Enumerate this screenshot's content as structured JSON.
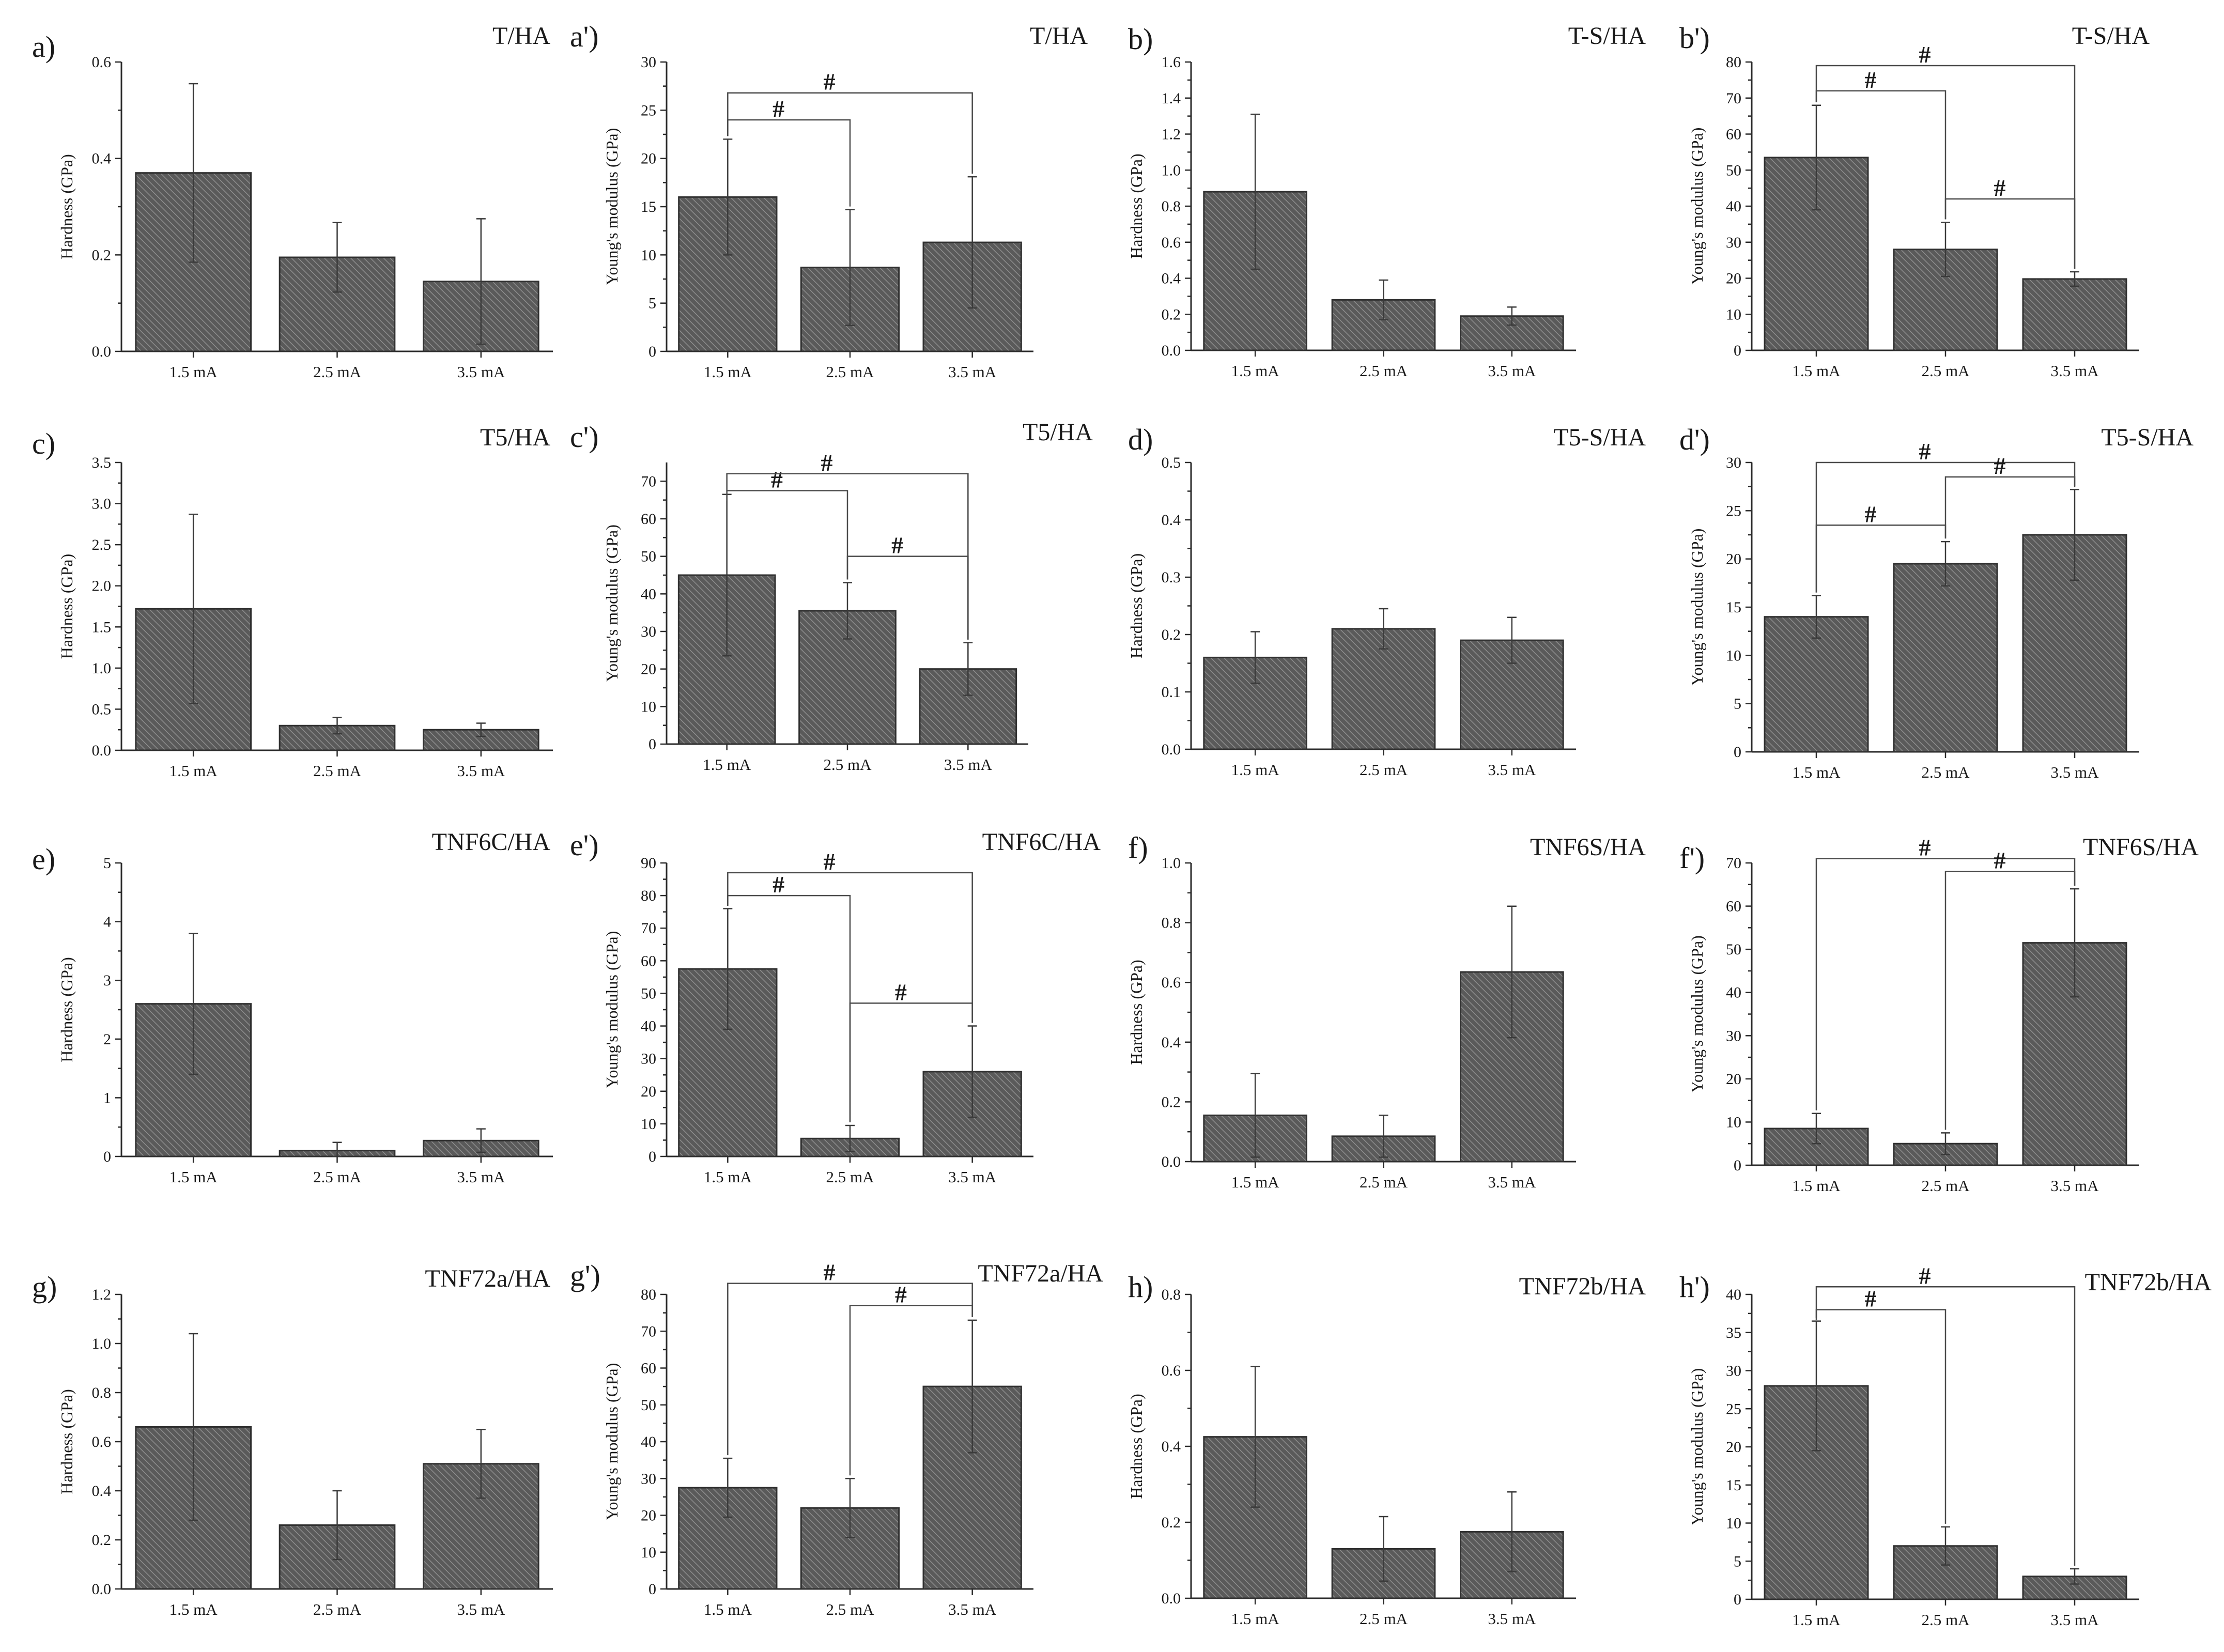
{
  "chart_data": [
    {
      "panel": "a)",
      "title": "T/HA",
      "type": "bar",
      "ylabel": "Hardness (GPa)",
      "categories": [
        "1.5 mA",
        "2.5 mA",
        "3.5 mA"
      ],
      "values": [
        0.37,
        0.195,
        0.145
      ],
      "errors": [
        0.185,
        0.072,
        0.13
      ],
      "yticks": [
        "0.0",
        "0.2",
        "0.4",
        "0.6"
      ],
      "ylim": [
        0,
        0.6
      ],
      "sig": []
    },
    {
      "panel": "a')",
      "title": "T/HA",
      "type": "bar",
      "ylabel": "Young's modulus (GPa)",
      "categories": [
        "1.5 mA",
        "2.5 mA",
        "3.5 mA"
      ],
      "values": [
        16,
        8.7,
        11.3
      ],
      "errors": [
        6,
        6,
        6.8
      ],
      "yticks": [
        "0",
        "5",
        "10",
        "15",
        "20",
        "25",
        "30"
      ],
      "ylim": [
        0,
        30
      ],
      "sig": [
        {
          "from": 0,
          "to": 1,
          "level": 24,
          "label": "#"
        },
        {
          "from": 0,
          "to": 2,
          "level": 26.8,
          "label": "#"
        }
      ]
    },
    {
      "panel": "b)",
      "title": "T-S/HA",
      "type": "bar",
      "ylabel": "Hardness (GPa)",
      "categories": [
        "1.5 mA",
        "2.5 mA",
        "3.5 mA"
      ],
      "values": [
        0.88,
        0.28,
        0.19
      ],
      "errors": [
        0.43,
        0.11,
        0.05
      ],
      "yticks": [
        "0.0",
        "0.2",
        "0.4",
        "0.6",
        "0.8",
        "1.0",
        "1.2",
        "1.4",
        "1.6"
      ],
      "ylim": [
        0,
        1.6
      ],
      "sig": []
    },
    {
      "panel": "b')",
      "title": "T-S/HA",
      "type": "bar",
      "ylabel": "Young's modulus (GPa)",
      "categories": [
        "1.5 mA",
        "2.5 mA",
        "3.5 mA"
      ],
      "values": [
        53.5,
        28,
        19.8
      ],
      "errors": [
        14.5,
        7.5,
        2
      ],
      "yticks": [
        "0",
        "10",
        "20",
        "30",
        "40",
        "50",
        "60",
        "70",
        "80"
      ],
      "ylim": [
        0,
        80
      ],
      "sig": [
        {
          "from": 0,
          "to": 1,
          "level": 72,
          "label": "#"
        },
        {
          "from": 0,
          "to": 2,
          "level": 79,
          "label": "#"
        },
        {
          "from": 1,
          "to": 2,
          "level": 42,
          "label": "#"
        }
      ]
    },
    {
      "panel": "c)",
      "title": "T5/HA",
      "type": "bar",
      "ylabel": "Hardness (GPa)",
      "categories": [
        "1.5 mA",
        "2.5 mA",
        "3.5 mA"
      ],
      "values": [
        1.72,
        0.3,
        0.25
      ],
      "errors": [
        1.15,
        0.1,
        0.08
      ],
      "yticks": [
        "0.0",
        "0.5",
        "1.0",
        "1.5",
        "2.0",
        "2.5",
        "3.0",
        "3.5"
      ],
      "ylim": [
        0,
        3.5
      ],
      "sig": []
    },
    {
      "panel": "c')",
      "title": "T5/HA",
      "type": "bar",
      "ylabel": "Young's modulus (GPa)",
      "categories": [
        "1.5 mA",
        "2.5 mA",
        "3.5 mA"
      ],
      "values": [
        45,
        35.5,
        20
      ],
      "errors": [
        21.5,
        7.5,
        7
      ],
      "yticks": [
        "0",
        "10",
        "20",
        "30",
        "40",
        "50",
        "60",
        "70"
      ],
      "ylim": [
        0,
        75
      ],
      "sig": [
        {
          "from": 0,
          "to": 1,
          "level": 67.5,
          "label": "#"
        },
        {
          "from": 0,
          "to": 2,
          "level": 72,
          "label": "#"
        },
        {
          "from": 1,
          "to": 2,
          "level": 50,
          "label": "#"
        }
      ]
    },
    {
      "panel": "d)",
      "title": "T5-S/HA",
      "type": "bar",
      "ylabel": "Hardness (GPa)",
      "categories": [
        "1.5 mA",
        "2.5 mA",
        "3.5 mA"
      ],
      "values": [
        0.16,
        0.21,
        0.19
      ],
      "errors": [
        0.045,
        0.035,
        0.04
      ],
      "yticks": [
        "0.0",
        "0.1",
        "0.2",
        "0.3",
        "0.4",
        "0.5"
      ],
      "ylim": [
        0,
        0.5
      ],
      "sig": []
    },
    {
      "panel": "d')",
      "title": "T5-S/HA",
      "type": "bar",
      "ylabel": "Young's modulus (GPa)",
      "categories": [
        "1.5 mA",
        "2.5 mA",
        "3.5 mA"
      ],
      "values": [
        14,
        19.5,
        22.5
      ],
      "errors": [
        2.2,
        2.3,
        4.7
      ],
      "yticks": [
        "0",
        "5",
        "10",
        "15",
        "20",
        "25",
        "30"
      ],
      "ylim": [
        0,
        30
      ],
      "sig": [
        {
          "from": 0,
          "to": 1,
          "level": 23.5,
          "label": "#"
        },
        {
          "from": 0,
          "to": 2,
          "level": 30,
          "label": "#"
        },
        {
          "from": 1,
          "to": 2,
          "level": 28.5,
          "label": "#"
        }
      ]
    },
    {
      "panel": "e)",
      "title": "TNF6C/HA",
      "type": "bar",
      "ylabel": "Hardness (GPa)",
      "categories": [
        "1.5 mA",
        "2.5 mA",
        "3.5 mA"
      ],
      "values": [
        2.6,
        0.1,
        0.27
      ],
      "errors": [
        1.2,
        0.14,
        0.2
      ],
      "yticks": [
        "0",
        "1",
        "2",
        "3",
        "4",
        "5"
      ],
      "ylim": [
        0,
        5
      ],
      "sig": []
    },
    {
      "panel": "e')",
      "title": "TNF6C/HA",
      "type": "bar",
      "ylabel": "Young's modulus (GPa)",
      "categories": [
        "1.5 mA",
        "2.5 mA",
        "3.5 mA"
      ],
      "values": [
        57.5,
        5.5,
        26
      ],
      "errors": [
        18.5,
        4,
        14
      ],
      "yticks": [
        "0",
        "10",
        "20",
        "30",
        "40",
        "50",
        "60",
        "70",
        "80",
        "90"
      ],
      "ylim": [
        0,
        90
      ],
      "sig": [
        {
          "from": 0,
          "to": 1,
          "level": 80,
          "label": "#"
        },
        {
          "from": 0,
          "to": 2,
          "level": 87,
          "label": "#"
        },
        {
          "from": 1,
          "to": 2,
          "level": 47,
          "label": "#"
        }
      ]
    },
    {
      "panel": "f)",
      "title": "TNF6S/HA",
      "type": "bar",
      "ylabel": "Hardness (GPa)",
      "categories": [
        "1.5 mA",
        "2.5 mA",
        "3.5 mA"
      ],
      "values": [
        0.155,
        0.085,
        0.635
      ],
      "errors": [
        0.14,
        0.07,
        0.22
      ],
      "yticks": [
        "0.0",
        "0.2",
        "0.4",
        "0.6",
        "0.8",
        "1.0"
      ],
      "ylim": [
        0,
        1.0
      ],
      "sig": []
    },
    {
      "panel": "f')",
      "title": "TNF6S/HA",
      "type": "bar",
      "ylabel": "Young's modulus (GPa)",
      "categories": [
        "1.5 mA",
        "2.5 mA",
        "3.5 mA"
      ],
      "values": [
        8.5,
        5,
        51.5
      ],
      "errors": [
        3.5,
        2.5,
        12.5
      ],
      "yticks": [
        "0",
        "10",
        "20",
        "30",
        "40",
        "50",
        "60",
        "70"
      ],
      "ylim": [
        0,
        70
      ],
      "sig": [
        {
          "from": 0,
          "to": 2,
          "level": 71,
          "label": "#"
        },
        {
          "from": 1,
          "to": 2,
          "level": 68,
          "label": "#"
        }
      ]
    },
    {
      "panel": "g)",
      "title": "TNF72a/HA",
      "type": "bar",
      "ylabel": "Hardness (GPa)",
      "categories": [
        "1.5 mA",
        "2.5 mA",
        "3.5 mA"
      ],
      "values": [
        0.66,
        0.26,
        0.51
      ],
      "errors": [
        0.38,
        0.14,
        0.14
      ],
      "yticks": [
        "0.0",
        "0.2",
        "0.4",
        "0.6",
        "0.8",
        "1.0",
        "1.2"
      ],
      "ylim": [
        0,
        1.2
      ],
      "sig": []
    },
    {
      "panel": "g')",
      "title": "TNF72a/HA",
      "type": "bar",
      "ylabel": "Young's modulus (GPa)",
      "categories": [
        "1.5 mA",
        "2.5 mA",
        "3.5 mA"
      ],
      "values": [
        27.5,
        22,
        55
      ],
      "errors": [
        8,
        8,
        18
      ],
      "yticks": [
        "0",
        "10",
        "20",
        "30",
        "40",
        "50",
        "60",
        "70",
        "80"
      ],
      "ylim": [
        0,
        80
      ],
      "sig": [
        {
          "from": 0,
          "to": 2,
          "level": 83,
          "label": "#"
        },
        {
          "from": 1,
          "to": 2,
          "level": 77,
          "label": "#"
        }
      ]
    },
    {
      "panel": "h)",
      "title": "TNF72b/HA",
      "type": "bar",
      "ylabel": "Hardness (GPa)",
      "categories": [
        "1.5 mA",
        "2.5 mA",
        "3.5 mA"
      ],
      "values": [
        0.425,
        0.13,
        0.175
      ],
      "errors": [
        0.185,
        0.085,
        0.105
      ],
      "yticks": [
        "0.0",
        "0.2",
        "0.4",
        "0.6",
        "0.8"
      ],
      "ylim": [
        0,
        0.8
      ],
      "sig": []
    },
    {
      "panel": "h')",
      "title": "TNF72b/HA",
      "type": "bar",
      "ylabel": "Young's modulus (GPa)",
      "categories": [
        "1.5 mA",
        "2.5 mA",
        "3.5 mA"
      ],
      "values": [
        28,
        7,
        3
      ],
      "errors": [
        8.5,
        2.5,
        1
      ],
      "yticks": [
        "0",
        "5",
        "10",
        "15",
        "20",
        "25",
        "30",
        "35",
        "40"
      ],
      "ylim": [
        0,
        40
      ],
      "sig": [
        {
          "from": 0,
          "to": 1,
          "level": 38,
          "label": "#"
        },
        {
          "from": 0,
          "to": 2,
          "level": 41,
          "label": "#"
        }
      ]
    }
  ]
}
